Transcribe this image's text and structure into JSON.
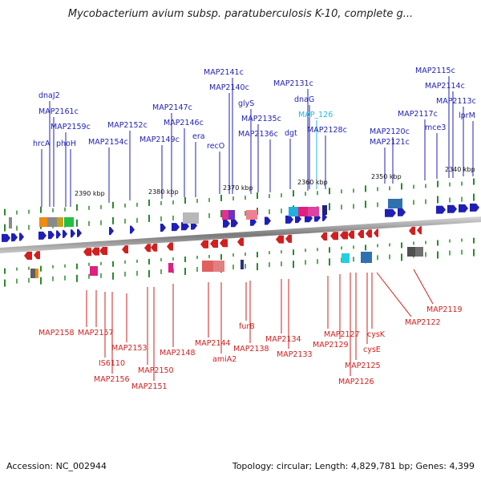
{
  "title": "Mycobacterium avium subsp. paratuberculosis K-10, complete g...",
  "footer": {
    "accession": "Accession: NC_002944",
    "summary": "Topology: circular; Length: 4,829,781 bp; Genes: 4,399"
  },
  "scale_labels": [
    "2390 kbp",
    "2380 kbp",
    "2370 kbp",
    "2360 kbp",
    "2350 kbp",
    "2340 kbp"
  ],
  "top_labels": [
    "dnaJ2",
    "MAP2161c",
    "MAP2159c",
    "phoH",
    "hrcA",
    "MAP2152c",
    "MAP2154c",
    "MAP2147c",
    "MAP2146c",
    "MAP2149c",
    "era",
    "recO",
    "MAP2141c",
    "MAP2140c",
    "glyS",
    "MAP2135c",
    "MAP2136c",
    "MAP2131c",
    "dnaG",
    "MAP_126",
    "dgt",
    "MAP2128c",
    "MAP2120c",
    "MAP2121c",
    "MAP2115c",
    "MAP2114c",
    "MAP2113c",
    "MAP2117c",
    "mce3",
    "lprM"
  ],
  "bottom_labels": [
    "MAP2158",
    "MAP2157",
    "IS6110",
    "MAP2156",
    "MAP2153",
    "MAP2150",
    "MAP2151",
    "MAP2148",
    "MAP2144",
    "amiA2",
    "furB",
    "MAP2138",
    "MAP2134",
    "MAP2133",
    "MAP2127",
    "MAP2129",
    "cysK",
    "cysE",
    "MAP2125",
    "MAP2126",
    "MAP2122",
    "MAP2119"
  ],
  "colors": {
    "forward": "#1f1fb8",
    "reverse": "#d21f1f",
    "rna": "#22b8d6",
    "backbone": "#8a8a8a",
    "tick": "#2a8a2a"
  }
}
